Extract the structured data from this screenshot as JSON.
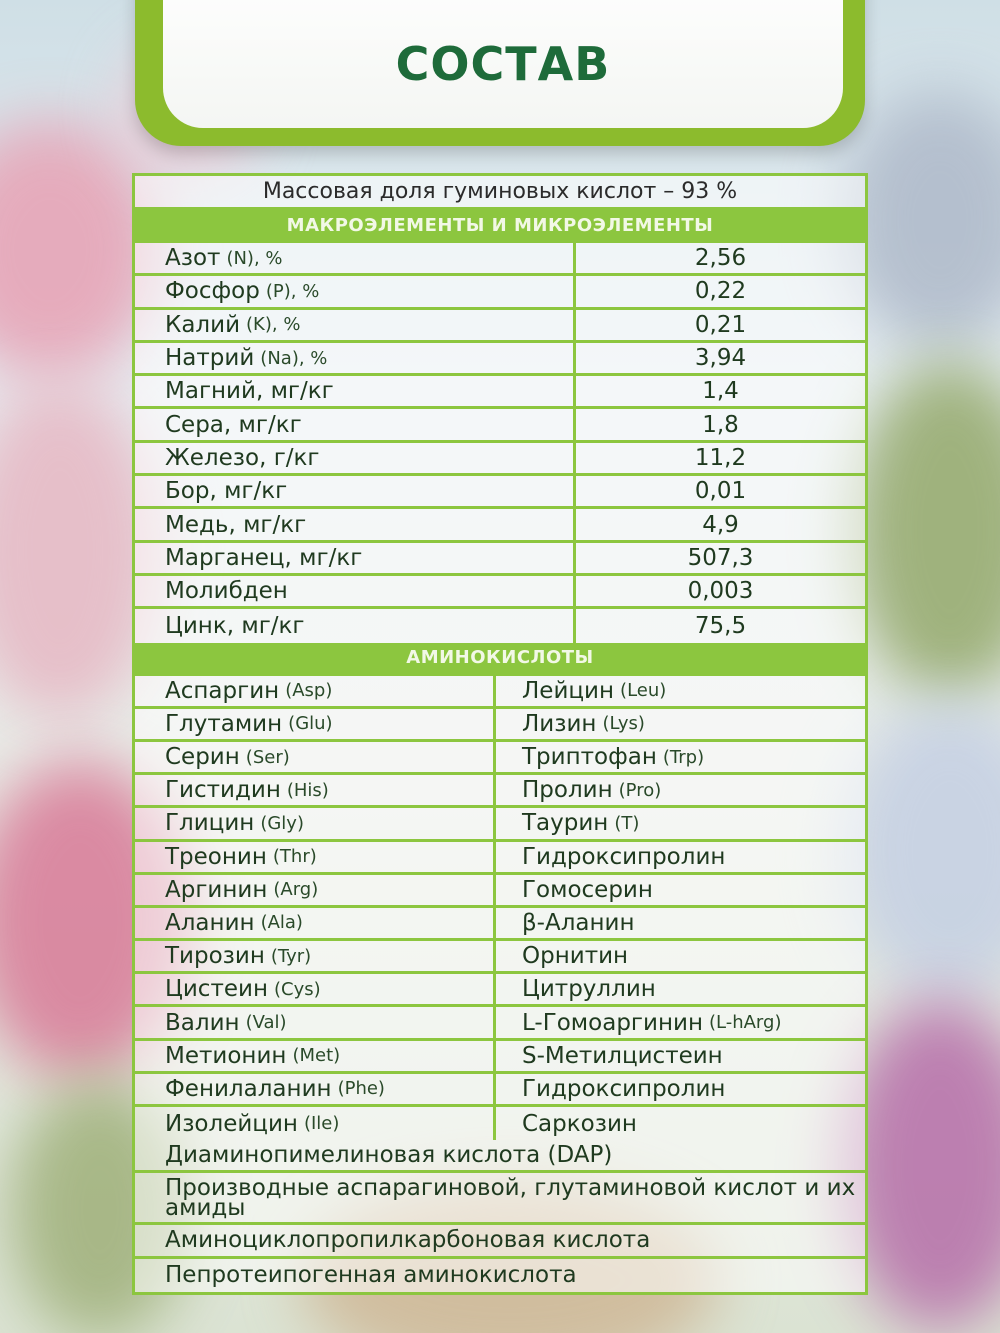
{
  "title": "СОСТАВ",
  "humic": "Массовая доля гуминовых кислот – 93 %",
  "macro_heading": "МАКРОЭЛЕМЕНТЫ И МИКРОЭЛЕМЕНТЫ",
  "macro": [
    {
      "name": "Азот",
      "sub": "(N), %",
      "value": "2,56"
    },
    {
      "name": "Фосфор",
      "sub": "(P), %",
      "value": "0,22"
    },
    {
      "name": "Калий",
      "sub": "(K), %",
      "value": "0,21"
    },
    {
      "name": "Натрий",
      "sub": "(Na), %",
      "value": "3,94"
    },
    {
      "name": "Магний, мг/кг",
      "sub": "",
      "value": "1,4"
    },
    {
      "name": "Сера, мг/кг",
      "sub": "",
      "value": "1,8"
    },
    {
      "name": "Железо, г/кг",
      "sub": "",
      "value": "11,2"
    },
    {
      "name": "Бор, мг/кг",
      "sub": "",
      "value": "0,01"
    },
    {
      "name": "Медь, мг/кг",
      "sub": "",
      "value": "4,9"
    },
    {
      "name": "Марганец, мг/кг",
      "sub": "",
      "value": "507,3"
    },
    {
      "name": "Молибден",
      "sub": "",
      "value": "0,003"
    },
    {
      "name": "Цинк, мг/кг",
      "sub": "",
      "value": "75,5"
    }
  ],
  "amino_heading": "АМИНОКИСЛОТЫ",
  "amino": [
    {
      "l": "Аспаргин",
      "ls": "(Asp)",
      "r": "Лейцин",
      "rs": "(Leu)"
    },
    {
      "l": "Глутамин",
      "ls": "(Glu)",
      "r": "Лизин",
      "rs": "(Lys)"
    },
    {
      "l": "Серин",
      "ls": "(Ser)",
      "r": "Триптофан",
      "rs": "(Trp)"
    },
    {
      "l": "Гистидин",
      "ls": "(His)",
      "r": "Пролин",
      "rs": "(Pro)"
    },
    {
      "l": "Глицин",
      "ls": "(Gly)",
      "r": "Таурин",
      "rs": "(T)"
    },
    {
      "l": "Треонин",
      "ls": "(Thr)",
      "r": "Гидроксипролин",
      "rs": ""
    },
    {
      "l": "Аргинин",
      "ls": "(Arg)",
      "r": "Гомосерин",
      "rs": ""
    },
    {
      "l": "Аланин",
      "ls": "(Ala)",
      "r": "β-Аланин",
      "rs": ""
    },
    {
      "l": "Тирозин",
      "ls": "(Tyr)",
      "r": "Орнитин",
      "rs": ""
    },
    {
      "l": "Цистеин",
      "ls": "(Cys)",
      "r": "Цитруллин",
      "rs": ""
    },
    {
      "l": "Валин",
      "ls": "(Val)",
      "r": "L-Гомоаргинин",
      "rs": "(L-hArg)"
    },
    {
      "l": "Метионин",
      "ls": "(Met)",
      "r": "S-Метилцистеин",
      "rs": ""
    },
    {
      "l": "Фенилаланин",
      "ls": "(Phe)",
      "r": "Гидроксипролин",
      "rs": ""
    },
    {
      "l": "Изолейцин",
      "ls": "(Ile)",
      "r": "Саркозин",
      "rs": ""
    }
  ],
  "extra": [
    "Диаминопимелиновая кислота (DAP)",
    "Производные аспарагиновой, глутаминовой кислот и их амиды",
    "Аминоциклопропилкарбоновая кислота",
    "Пепротеипогенная аминокислота"
  ],
  "colors": {
    "accent": "#8cc63f",
    "title": "#1e6b3a"
  }
}
